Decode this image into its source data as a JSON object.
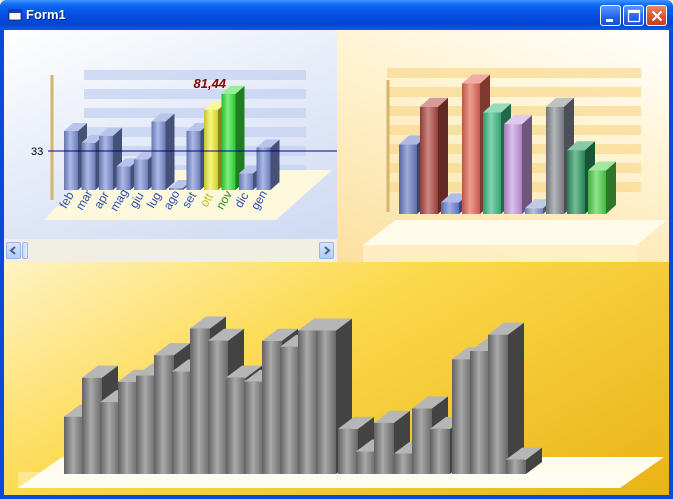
{
  "window": {
    "title": "Form1",
    "icons": {
      "app": "form-icon",
      "minimize": "minimize-icon",
      "maximize": "maximize-icon",
      "close": "close-icon"
    }
  },
  "colors": {
    "titlebar": "#0450E0",
    "client_bg": "#F4D26A",
    "blue_bar": "#7F93D8",
    "highlight_yellow": "#F5F23A",
    "highlight_green": "#39E63A",
    "ref_line": "#00008B",
    "value_label": "#8B0000"
  },
  "chart_data": [
    {
      "type": "bar",
      "name": "top-left",
      "categories": [
        "feb",
        "mar",
        "apr",
        "mag",
        "giu",
        "lug",
        "ago",
        "set",
        "ott",
        "nov",
        "dic",
        "gen"
      ],
      "values": [
        50,
        40,
        46,
        20,
        26,
        58,
        0,
        50,
        68,
        81.44,
        14,
        36
      ],
      "highlight": {
        "ott": "yellow",
        "nov": "green"
      },
      "reference_line": 33,
      "reference_label": "33",
      "value_label": "81,44",
      "grid": true
    },
    {
      "type": "bar",
      "name": "top-right",
      "series": [
        {
          "color": "#6A7FC8",
          "values": [
            48
          ]
        },
        {
          "color": "#B24A44",
          "values": [
            74
          ]
        },
        {
          "color": "#6D86D8",
          "values": [
            8
          ]
        },
        {
          "color": "#E66A58",
          "values": [
            90
          ]
        },
        {
          "color": "#3EBE86",
          "values": [
            70
          ]
        },
        {
          "color": "#C99CE6",
          "values": [
            62
          ]
        },
        {
          "color": "#8C9ECF",
          "values": [
            4
          ]
        },
        {
          "color": "#8A8F96",
          "values": [
            74
          ]
        },
        {
          "color": "#2A9A62",
          "values": [
            44
          ]
        },
        {
          "color": "#52D64C",
          "values": [
            30
          ]
        }
      ],
      "grid": true
    },
    {
      "type": "bar",
      "name": "bottom",
      "values": [
        28,
        47,
        35,
        45,
        48,
        58,
        50,
        71,
        65,
        47,
        45,
        65,
        62,
        70,
        70,
        22,
        11,
        25,
        10,
        32,
        22,
        56,
        60,
        68,
        7
      ],
      "color": "#7A7A7A"
    }
  ]
}
